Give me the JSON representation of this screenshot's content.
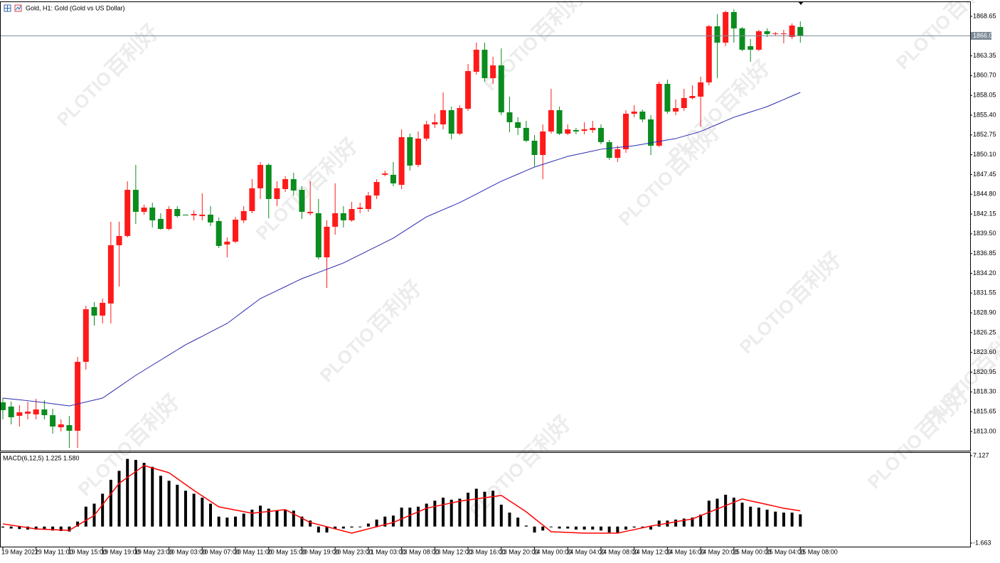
{
  "watermark": {
    "brand": "PLOTIO",
    "chinese": "百利好"
  },
  "chart_data": [
    {
      "type": "candlestick",
      "title": "Gold, H1:  Gold (Gold vs US Dollar)",
      "categories": [
        "19 May 2022",
        null,
        null,
        null,
        "19 May 11:00",
        null,
        null,
        null,
        "19 May 15:00",
        null,
        null,
        null,
        "19 May 19:00",
        null,
        null,
        null,
        "19 May 23:00",
        null,
        null,
        null,
        "20 May 03:00",
        null,
        null,
        null,
        "20 May 07:00",
        null,
        null,
        null,
        "20 May 11:00",
        null,
        null,
        null,
        "20 May 15:00",
        null,
        null,
        null,
        "20 May 19:00",
        null,
        null,
        null,
        "20 May 23:00",
        null,
        null,
        null,
        "21 May 03:00",
        null,
        null,
        null,
        "23 May 08:00",
        null,
        null,
        null,
        "23 May 12:00",
        null,
        null,
        null,
        "23 May 16:00",
        null,
        null,
        null,
        "23 May 20:00",
        null,
        null,
        null,
        "24 May 00:00",
        null,
        null,
        null,
        "24 May 04:00",
        null,
        null,
        null,
        "24 May 08:00",
        null,
        null,
        null,
        "24 May 12:00",
        null,
        null,
        null,
        "24 May 16:00",
        null,
        null,
        null,
        "24 May 20:00",
        null,
        null,
        null,
        "25 May 00:00",
        null,
        null,
        null,
        "25 May 04:00",
        null,
        null,
        null,
        "25 May 08:00"
      ],
      "open": [
        1816.9,
        1816.33,
        1815.09,
        1815.38,
        1815.28,
        1815.95,
        1815.18,
        1813.56,
        1813.85,
        1813.09,
        1822.33,
        1829.67,
        1828.53,
        1830.15,
        1837.96,
        1839.2,
        1845.39,
        1842.44,
        1843.01,
        1841.49,
        1840.15,
        1842.82,
        1842.06,
        1841.96,
        1841.87,
        1842.06,
        1841.2,
        1838.06,
        1838.44,
        1841.3,
        1842.54,
        1845.59,
        1848.73,
        1844.16,
        1845.49,
        1846.82,
        1845.39,
        1842.25,
        1842.25,
        1836.34,
        1840.44,
        1842.25,
        1841.3,
        1842.82,
        1842.82,
        1844.63,
        1847.4,
        1847.4,
        1846.06,
        1852.45,
        1848.73,
        1852.26,
        1854.16,
        1854.16,
        1856.07,
        1852.92,
        1856.26,
        1861.21,
        1864.17,
        1860.36,
        1862.07,
        1855.78,
        1854.45,
        1853.69,
        1851.97,
        1850.06,
        1853.21,
        1856.07,
        1852.92,
        1853.4,
        1853.3,
        1853.4,
        1853.69,
        1851.78,
        1849.68,
        1850.83,
        1855.59,
        1855.88,
        1854.83,
        1851.3,
        1859.59,
        1855.88,
        1856.35,
        1857.69,
        1857.88,
        1859.79,
        1867.31,
        1865.12,
        1869.22,
        1867.03,
        1864.65,
        1864.17,
        1866.65,
        1866.27,
        1866.27,
        1865.88,
        1867.22
      ],
      "high": [
        1817.47,
        1817.0,
        1816.52,
        1817.0,
        1817.38,
        1817.19,
        1816.04,
        1814.61,
        1815.09,
        1823.0,
        1829.86,
        1830.34,
        1830.81,
        1841.11,
        1841.11,
        1846.54,
        1848.73,
        1843.39,
        1843.68,
        1842.25,
        1843.2,
        1843.2,
        1842.06,
        1842.63,
        1844.92,
        1843.2,
        1841.68,
        1839.01,
        1841.77,
        1843.2,
        1846.82,
        1849.11,
        1848.92,
        1846.54,
        1847.21,
        1847.68,
        1845.87,
        1846.54,
        1844.16,
        1841.3,
        1846.25,
        1843.2,
        1843.77,
        1843.68,
        1845.11,
        1846.82,
        1847.97,
        1849.11,
        1853.5,
        1852.92,
        1853.21,
        1854.64,
        1855.59,
        1858.45,
        1856.54,
        1856.74,
        1862.26,
        1865.12,
        1865.12,
        1863.22,
        1864.36,
        1857.88,
        1855.12,
        1854.64,
        1852.73,
        1854.16,
        1858.93,
        1856.54,
        1854.16,
        1853.69,
        1854.45,
        1854.64,
        1854.16,
        1852.07,
        1851.3,
        1856.07,
        1856.74,
        1856.16,
        1855.4,
        1859.88,
        1860.17,
        1857.5,
        1858.93,
        1859.4,
        1860.55,
        1867.5,
        1868.93,
        1869.41,
        1869.6,
        1867.22,
        1865.6,
        1866.84,
        1867.03,
        1866.55,
        1866.84,
        1867.7,
        1867.98
      ],
      "low": [
        1814.61,
        1813.95,
        1813.66,
        1814.61,
        1814.61,
        1814.61,
        1812.71,
        1812.99,
        1810.8,
        1810.8,
        1821.28,
        1827.19,
        1827.48,
        1827.48,
        1832.43,
        1839.01,
        1840.82,
        1842.06,
        1840.34,
        1840.06,
        1839.96,
        1841.68,
        1841.96,
        1841.3,
        1841.3,
        1840.53,
        1837.58,
        1836.34,
        1838.25,
        1840.92,
        1842.25,
        1844.16,
        1841.58,
        1843.2,
        1845.11,
        1844.63,
        1841.49,
        1841.96,
        1836.06,
        1832.24,
        1839.39,
        1840.34,
        1841.11,
        1842.25,
        1842.44,
        1844.16,
        1847.21,
        1845.87,
        1845.49,
        1847.97,
        1848.44,
        1851.97,
        1853.69,
        1853.5,
        1852.16,
        1852.73,
        1855.97,
        1860.83,
        1859.88,
        1859.59,
        1855.4,
        1853.11,
        1852.73,
        1851.78,
        1848.54,
        1846.82,
        1852.92,
        1852.73,
        1852.73,
        1852.83,
        1852.83,
        1853.02,
        1851.49,
        1849.4,
        1849.11,
        1850.35,
        1855.12,
        1854.45,
        1850.06,
        1851.11,
        1855.59,
        1855.4,
        1855.97,
        1857.5,
        1853.88,
        1859.4,
        1860.36,
        1864.65,
        1865.12,
        1863.98,
        1862.55,
        1863.98,
        1865.88,
        1866.07,
        1865.03,
        1865.6,
        1865.12
      ],
      "close": [
        1815.85,
        1814.9,
        1815.57,
        1815.66,
        1815.95,
        1815.18,
        1813.66,
        1813.95,
        1813.09,
        1822.33,
        1829.38,
        1828.53,
        1830.24,
        1837.96,
        1839.2,
        1845.39,
        1842.44,
        1843.01,
        1841.3,
        1840.15,
        1842.82,
        1841.87,
        1841.96,
        1842.15,
        1842.06,
        1841.01,
        1837.87,
        1838.44,
        1841.39,
        1842.54,
        1845.59,
        1848.73,
        1844.16,
        1845.59,
        1846.82,
        1845.3,
        1842.44,
        1842.44,
        1836.34,
        1840.44,
        1842.25,
        1841.3,
        1842.82,
        1843.01,
        1844.63,
        1846.44,
        1847.59,
        1846.25,
        1852.45,
        1848.64,
        1852.26,
        1854.16,
        1854.45,
        1856.07,
        1852.92,
        1856.35,
        1861.31,
        1864.17,
        1860.36,
        1862.07,
        1855.78,
        1854.45,
        1853.69,
        1851.97,
        1850.06,
        1853.21,
        1856.07,
        1852.92,
        1853.5,
        1853.21,
        1853.5,
        1853.69,
        1851.78,
        1849.68,
        1850.83,
        1855.59,
        1855.88,
        1854.83,
        1851.3,
        1859.59,
        1855.88,
        1856.35,
        1857.69,
        1857.97,
        1859.79,
        1867.31,
        1865.12,
        1869.22,
        1867.03,
        1864.17,
        1864.17,
        1866.65,
        1866.27,
        1866.36,
        1866.36,
        1867.41,
        1866.03
      ],
      "up_color": "#ff1a1a",
      "down_color": "#0b8c1e",
      "ma": {
        "color": "#2a2ab0",
        "values": [
          1817.47,
          1817.35,
          1817.24,
          1817.12,
          1817.0,
          1816.86,
          1816.71,
          1816.57,
          1816.42,
          1816.68,
          1816.95,
          1817.21,
          1817.47,
          1818.23,
          1818.99,
          1819.76,
          1820.52,
          1821.2,
          1821.89,
          1822.57,
          1823.25,
          1823.94,
          1824.62,
          1825.19,
          1825.76,
          1826.34,
          1826.91,
          1827.48,
          1828.31,
          1829.15,
          1829.98,
          1830.81,
          1831.34,
          1831.88,
          1832.41,
          1832.95,
          1833.48,
          1833.9,
          1834.32,
          1834.74,
          1835.16,
          1835.58,
          1836.14,
          1836.69,
          1837.25,
          1837.8,
          1838.36,
          1838.91,
          1839.63,
          1840.34,
          1841.06,
          1841.77,
          1842.25,
          1842.73,
          1843.2,
          1843.68,
          1844.25,
          1844.82,
          1845.4,
          1845.97,
          1846.54,
          1847.02,
          1847.49,
          1847.97,
          1848.44,
          1848.8,
          1849.16,
          1849.51,
          1849.87,
          1850.11,
          1850.35,
          1850.59,
          1850.83,
          1850.95,
          1851.06,
          1851.18,
          1851.3,
          1851.49,
          1851.68,
          1851.88,
          1852.07,
          1852.26,
          1852.58,
          1852.89,
          1853.21,
          1853.69,
          1854.16,
          1854.64,
          1855.12,
          1855.47,
          1855.83,
          1856.18,
          1856.54,
          1857.02,
          1857.49,
          1857.97,
          1858.45
        ]
      },
      "current_price": 1866.03,
      "ylim": [
        1810.42,
        1870.55
      ],
      "yticks": [
        1868.65,
        1863.35,
        {
          "value": 1860.7,
          "label": "1860.70"
        },
        1858.05,
        {
          "value": 1855.4,
          "label": "1855.40"
        },
        1852.75,
        {
          "value": 1850.1,
          "label": "1850.10"
        },
        1847.45,
        {
          "value": 1844.8,
          "label": "1844.80"
        },
        1842.15,
        {
          "value": 1839.5,
          "label": "1839.50"
        },
        1836.85,
        {
          "value": 1834.2,
          "label": "1834.20"
        },
        1831.55,
        {
          "value": 1828.9,
          "label": "1828.90"
        },
        1826.25,
        {
          "value": 1823.6,
          "label": "1823.60"
        },
        1820.95,
        {
          "value": 1818.3,
          "label": "1818.30"
        },
        1815.65,
        {
          "value": 1813,
          "label": "1813.00"
        }
      ]
    },
    {
      "type": "macd",
      "title": "MACD(6,12,5) 1.225 1.580",
      "histogram": {
        "color": "#000000",
        "values": [
          -0.1,
          -0.2,
          -0.25,
          -0.3,
          -0.3,
          -0.3,
          -0.4,
          -0.45,
          -0.5,
          0.5,
          2.0,
          2.3,
          3.3,
          4.7,
          5.6,
          6.8,
          6.7,
          6.4,
          6.0,
          5.1,
          4.6,
          4.2,
          3.6,
          3.3,
          2.9,
          2.3,
          1.0,
          0.9,
          1.0,
          1.3,
          1.7,
          2.1,
          1.8,
          1.6,
          1.7,
          1.6,
          1.0,
          0.6,
          -0.6,
          -0.6,
          -0.2,
          -0.2,
          -0.1,
          0.0,
          0.3,
          0.7,
          1.0,
          1.1,
          1.9,
          1.9,
          2.0,
          2.3,
          2.6,
          2.9,
          2.7,
          2.8,
          3.4,
          3.8,
          3.5,
          3.6,
          2.2,
          1.4,
          0.9,
          0.1,
          -0.6,
          -0.4,
          0.0,
          -0.2,
          -0.2,
          -0.3,
          -0.3,
          -0.3,
          -0.4,
          -0.6,
          -0.6,
          -0.3,
          -0.1,
          0.0,
          -0.3,
          0.6,
          0.6,
          0.7,
          0.8,
          0.9,
          1.2,
          2.6,
          2.8,
          3.2,
          2.9,
          2.4,
          2.0,
          1.9,
          1.7,
          1.5,
          1.4,
          1.4,
          1.225
        ]
      },
      "signal": {
        "color": "#ff0000",
        "values": [
          0.27,
          0.14,
          0.02,
          -0.11,
          -0.24,
          -0.28,
          -0.31,
          -0.35,
          -0.38,
          0.12,
          0.62,
          1.12,
          2.19,
          3.27,
          4.34,
          4.94,
          5.53,
          6.13,
          5.89,
          5.65,
          5.41,
          4.82,
          4.22,
          3.63,
          3.08,
          2.53,
          1.98,
          1.82,
          1.66,
          1.5,
          1.34,
          1.43,
          1.52,
          1.61,
          1.7,
          1.27,
          0.84,
          0.41,
          0.2,
          -0.02,
          -0.23,
          -0.45,
          -0.66,
          -0.45,
          -0.23,
          -0.02,
          0.2,
          0.41,
          0.77,
          1.13,
          1.48,
          1.84,
          2.02,
          2.2,
          2.37,
          2.55,
          2.67,
          2.78,
          2.9,
          3.01,
          3.13,
          2.58,
          2.03,
          1.48,
          0.81,
          0.15,
          -0.52,
          -0.56,
          -0.59,
          -0.63,
          -0.66,
          -0.66,
          -0.66,
          -0.66,
          -0.66,
          -0.48,
          -0.31,
          -0.13,
          0.05,
          0.19,
          0.33,
          0.48,
          0.62,
          0.76,
          1.1,
          1.43,
          1.77,
          2.1,
          2.44,
          2.77,
          2.58,
          2.4,
          2.21,
          2.03,
          1.84,
          1.71,
          1.58
        ]
      },
      "ylim": [
        -2.02,
        7.41
      ],
      "yticks": [
        7.127,
        -1.663
      ]
    }
  ]
}
